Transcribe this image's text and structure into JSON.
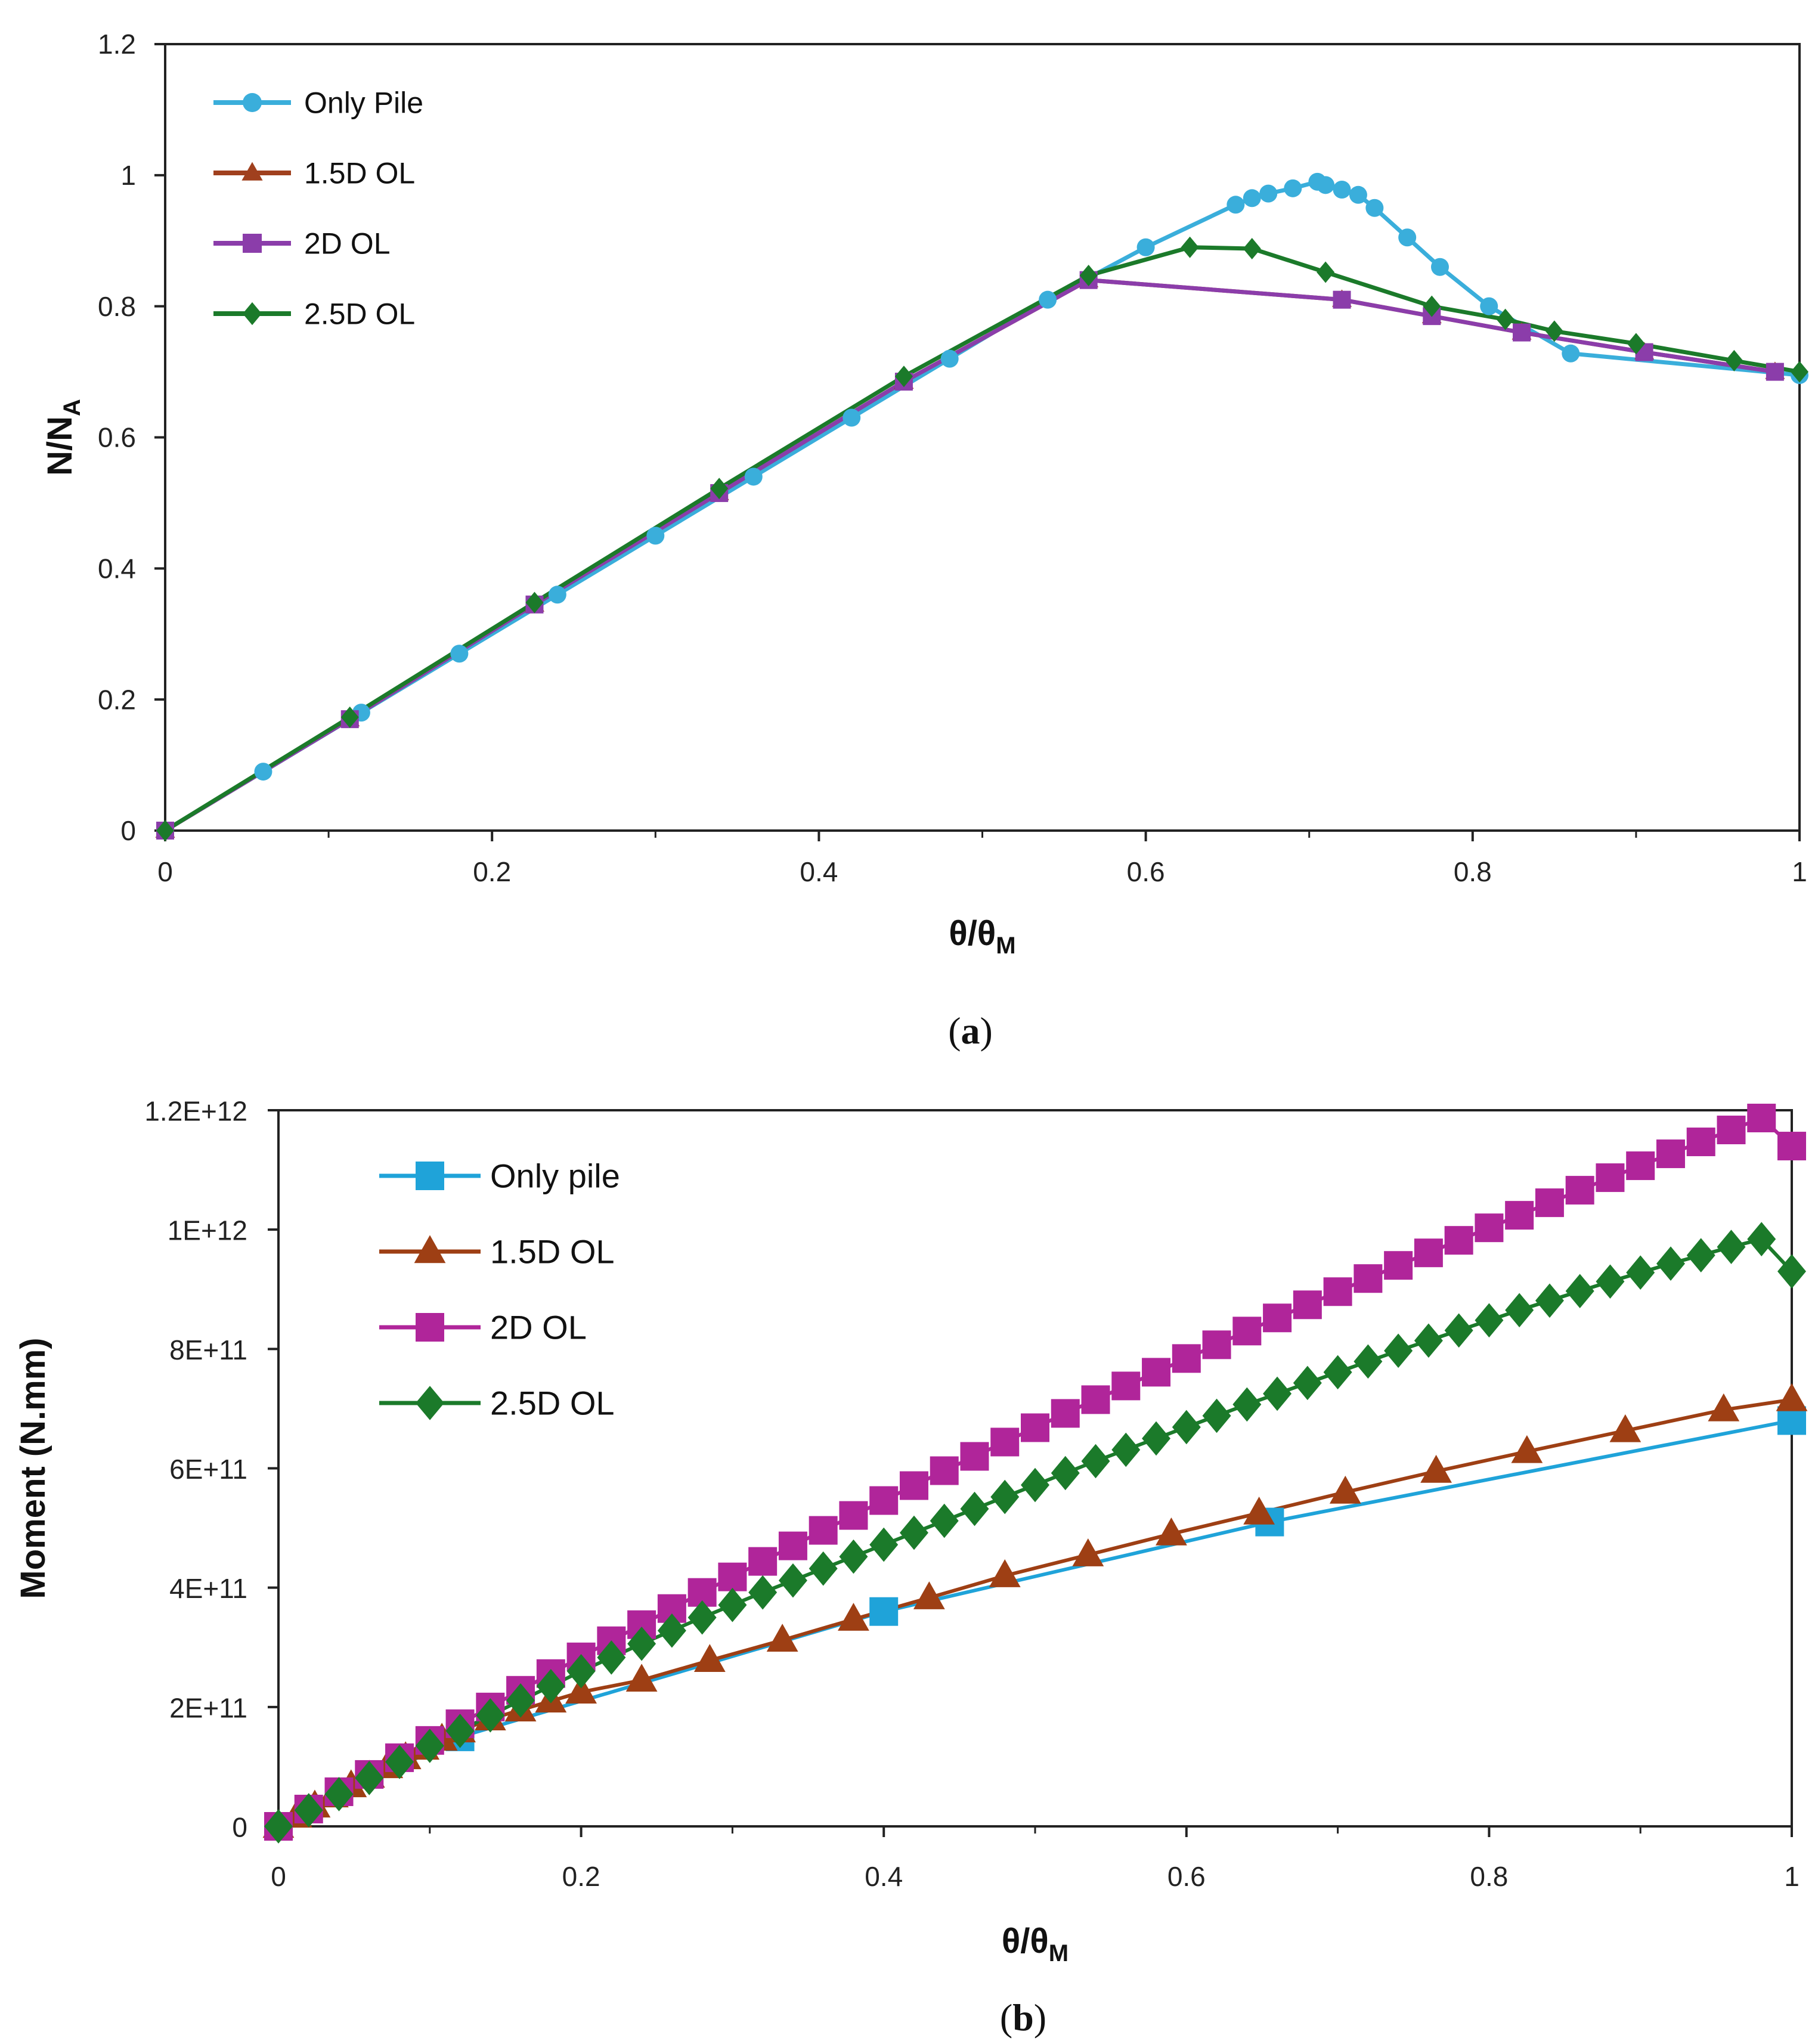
{
  "chart_data": [
    {
      "type": "line",
      "panel_label": "(a)",
      "panel_label_bold": "a",
      "xlabel": "θ/θ",
      "xlabel_sub": "M",
      "ylabel": "N/N",
      "ylabel_sub": "A",
      "xlim": [
        0,
        1
      ],
      "ylim": [
        0,
        1.2
      ],
      "x_ticks": [
        "0",
        "0.2",
        "0.4",
        "0.6",
        "0.8",
        "1"
      ],
      "y_ticks": [
        "0",
        "0.2",
        "0.4",
        "0.6",
        "0.8",
        "1",
        "1.2"
      ],
      "legend_position": "top-left",
      "series": [
        {
          "name": "Only Pile",
          "color": "#3AAEDB",
          "marker": "circle",
          "x": [
            0,
            0.06,
            0.12,
            0.18,
            0.24,
            0.3,
            0.36,
            0.42,
            0.48,
            0.54,
            0.6,
            0.655,
            0.665,
            0.675,
            0.69,
            0.705,
            0.71,
            0.72,
            0.73,
            0.74,
            0.76,
            0.78,
            0.81,
            0.86,
            1.0
          ],
          "y": [
            0,
            0.09,
            0.18,
            0.27,
            0.36,
            0.45,
            0.54,
            0.63,
            0.72,
            0.81,
            0.89,
            0.955,
            0.965,
            0.972,
            0.98,
            0.99,
            0.985,
            0.978,
            0.97,
            0.95,
            0.905,
            0.86,
            0.8,
            0.728,
            0.695
          ]
        },
        {
          "name": "1.5D OL",
          "color": "#A0401E",
          "marker": "triangle",
          "x": [
            0,
            0.113,
            0.226,
            0.339,
            0.452,
            0.565,
            0.72,
            0.775,
            0.83,
            0.905,
            0.985
          ],
          "y": [
            0,
            0.17,
            0.345,
            0.515,
            0.685,
            0.84,
            0.81,
            0.785,
            0.76,
            0.73,
            0.7
          ]
        },
        {
          "name": "2D OL",
          "color": "#8B3DAA",
          "marker": "square",
          "x": [
            0,
            0.113,
            0.226,
            0.339,
            0.452,
            0.565,
            0.72,
            0.775,
            0.83,
            0.905,
            0.985
          ],
          "y": [
            0,
            0.17,
            0.345,
            0.515,
            0.685,
            0.84,
            0.81,
            0.785,
            0.76,
            0.73,
            0.7
          ]
        },
        {
          "name": "2.5D OL",
          "color": "#1B7A2A",
          "marker": "diamond",
          "x": [
            0,
            0.113,
            0.226,
            0.339,
            0.452,
            0.565,
            0.627,
            0.665,
            0.71,
            0.775,
            0.82,
            0.85,
            0.9,
            0.96,
            1.0
          ],
          "y": [
            0,
            0.173,
            0.348,
            0.522,
            0.693,
            0.847,
            0.89,
            0.888,
            0.852,
            0.8,
            0.78,
            0.762,
            0.743,
            0.717,
            0.7
          ]
        }
      ]
    },
    {
      "type": "line",
      "panel_label": "(b)",
      "panel_label_bold": "b",
      "xlabel": "θ/θ",
      "xlabel_sub": "M",
      "ylabel": "Moment (N.mm)",
      "xlim": [
        0,
        1
      ],
      "ylim": [
        0,
        1200000000000.0
      ],
      "x_ticks": [
        "0",
        "0.2",
        "0.4",
        "0.6",
        "0.8",
        "1"
      ],
      "y_ticks": [
        "0",
        "2E+11",
        "4E+11",
        "6E+11",
        "8E+11",
        "1E+12",
        "1.2E+12"
      ],
      "legend_position": "top-left",
      "series": [
        {
          "name": "Only pile",
          "color": "#1FA3D9",
          "marker": "square",
          "x": [
            0,
            0.12,
            0.4,
            0.655,
            1.0
          ],
          "y": [
            0,
            150000000000.0,
            360000000000.0,
            510000000000.0,
            680000000000.0
          ]
        },
        {
          "name": "1.5D OL",
          "color": "#9E3F14",
          "marker": "triangle",
          "x": [
            0,
            0.012,
            0.024,
            0.036,
            0.048,
            0.06,
            0.072,
            0.084,
            0.096,
            0.108,
            0.12,
            0.14,
            0.16,
            0.18,
            0.2,
            0.24,
            0.285,
            0.333,
            0.38,
            0.43,
            0.48,
            0.535,
            0.59,
            0.648,
            0.705,
            0.765,
            0.825,
            0.89,
            0.955,
            1.0
          ],
          "y": [
            0,
            17000000000.0,
            34000000000.0,
            51000000000.0,
            68000000000.0,
            84000000000.0,
            100000000000.0,
            115000000000.0,
            131000000000.0,
            146000000000.0,
            160000000000.0,
            180000000000.0,
            195000000000.0,
            210000000000.0,
            225000000000.0,
            245000000000.0,
            278000000000.0,
            312000000000.0,
            347000000000.0,
            383000000000.0,
            420000000000.0,
            455000000000.0,
            490000000000.0,
            525000000000.0,
            560000000000.0,
            595000000000.0,
            628000000000.0,
            663000000000.0,
            698000000000.0,
            715000000000.0
          ]
        },
        {
          "name": "2D OL",
          "color": "#B0259A",
          "marker": "square",
          "x": [
            0,
            0.02,
            0.04,
            0.06,
            0.08,
            0.1,
            0.12,
            0.14,
            0.16,
            0.18,
            0.2,
            0.22,
            0.24,
            0.26,
            0.28,
            0.3,
            0.32,
            0.34,
            0.36,
            0.38,
            0.4,
            0.42,
            0.44,
            0.46,
            0.48,
            0.5,
            0.52,
            0.54,
            0.56,
            0.58,
            0.6,
            0.62,
            0.64,
            0.66,
            0.68,
            0.7,
            0.72,
            0.74,
            0.76,
            0.78,
            0.8,
            0.82,
            0.84,
            0.86,
            0.88,
            0.9,
            0.92,
            0.94,
            0.96,
            0.98,
            1.0
          ],
          "y": [
            0,
            29000000000.0,
            58000000000.0,
            87000000000.0,
            115000000000.0,
            144000000000.0,
            172000000000.0,
            200000000000.0,
            228000000000.0,
            256000000000.0,
            284000000000.0,
            311000000000.0,
            338000000000.0,
            365000000000.0,
            392000000000.0,
            418000000000.0,
            444000000000.0,
            470000000000.0,
            496000000000.0,
            521000000000.0,
            546000000000.0,
            571000000000.0,
            596000000000.0,
            620000000000.0,
            644000000000.0,
            668000000000.0,
            692000000000.0,
            715000000000.0,
            738000000000.0,
            761000000000.0,
            784000000000.0,
            807000000000.0,
            830000000000.0,
            852000000000.0,
            874000000000.0,
            896000000000.0,
            918000000000.0,
            940000000000.0,
            961000000000.0,
            982000000000.0,
            1003000000000.0,
            1024000000000.0,
            1045000000000.0,
            1066000000000.0,
            1087000000000.0,
            1107000000000.0,
            1127000000000.0,
            1147000000000.0,
            1167000000000.0,
            1187000000000.0,
            1140000000000.0
          ]
        },
        {
          "name": "2.5D OL",
          "color": "#1B7A2A",
          "marker": "diamond",
          "x": [
            0,
            0.02,
            0.04,
            0.06,
            0.08,
            0.1,
            0.12,
            0.14,
            0.16,
            0.18,
            0.2,
            0.22,
            0.24,
            0.26,
            0.28,
            0.3,
            0.32,
            0.34,
            0.36,
            0.38,
            0.4,
            0.42,
            0.44,
            0.46,
            0.48,
            0.5,
            0.52,
            0.54,
            0.56,
            0.58,
            0.6,
            0.62,
            0.64,
            0.66,
            0.68,
            0.7,
            0.72,
            0.74,
            0.76,
            0.78,
            0.8,
            0.82,
            0.84,
            0.86,
            0.88,
            0.9,
            0.92,
            0.94,
            0.96,
            0.98,
            1.0
          ],
          "y": [
            0,
            27000000000.0,
            54000000000.0,
            81000000000.0,
            108000000000.0,
            135000000000.0,
            160000000000.0,
            186000000000.0,
            211000000000.0,
            235000000000.0,
            260000000000.0,
            283000000000.0,
            306000000000.0,
            328000000000.0,
            350000000000.0,
            371000000000.0,
            392000000000.0,
            412000000000.0,
            432000000000.0,
            452000000000.0,
            472000000000.0,
            492000000000.0,
            512000000000.0,
            532000000000.0,
            552000000000.0,
            572000000000.0,
            592000000000.0,
            612000000000.0,
            631000000000.0,
            650000000000.0,
            669000000000.0,
            688000000000.0,
            707000000000.0,
            725000000000.0,
            743000000000.0,
            761000000000.0,
            779000000000.0,
            797000000000.0,
            814000000000.0,
            831000000000.0,
            848000000000.0,
            865000000000.0,
            881000000000.0,
            897000000000.0,
            913000000000.0,
            928000000000.0,
            943000000000.0,
            957000000000.0,
            971000000000.0,
            984000000000.0,
            930000000000.0
          ]
        }
      ]
    }
  ]
}
